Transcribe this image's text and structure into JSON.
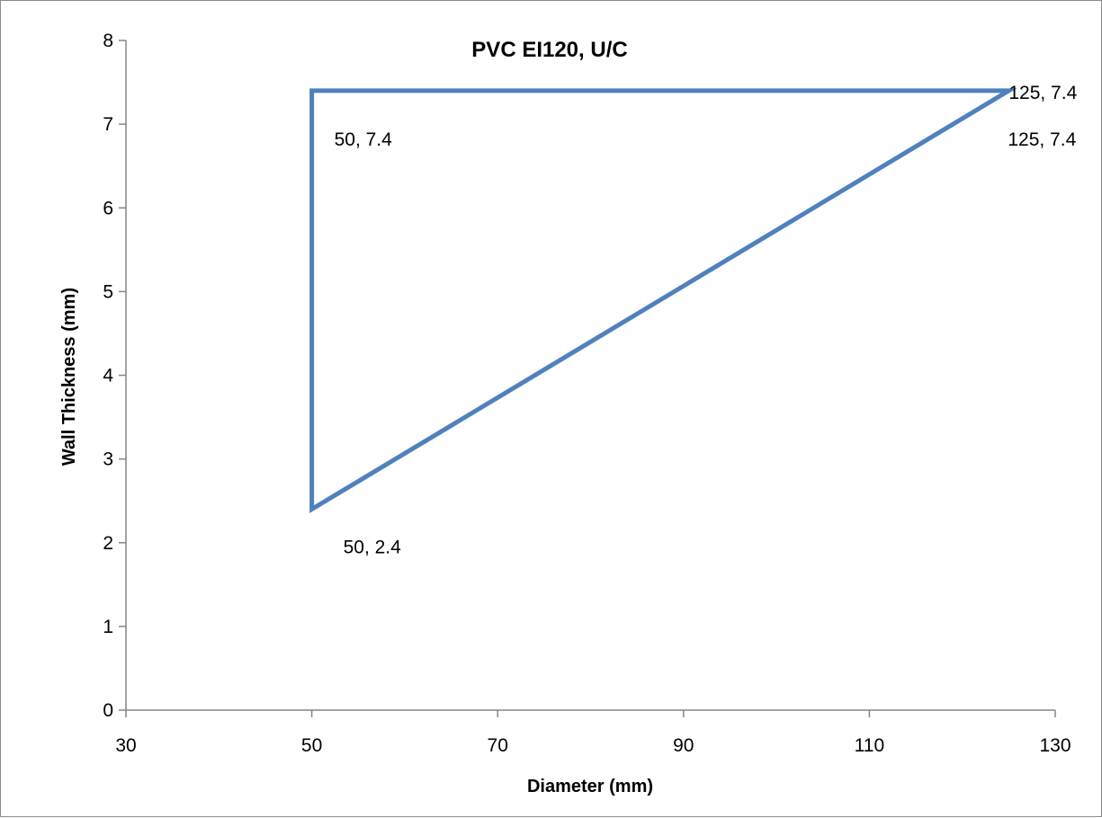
{
  "chart_data": {
    "type": "line",
    "title": "PVC EI120, U/C",
    "xlabel": "Diameter (mm)",
    "ylabel": "Wall Thickness (mm)",
    "xlim": [
      30,
      130
    ],
    "ylim": [
      0,
      8
    ],
    "x_ticks": [
      "30",
      "50",
      "70",
      "90",
      "110",
      "130"
    ],
    "y_ticks": [
      "0",
      "1",
      "2",
      "3",
      "4",
      "5",
      "6",
      "7",
      "8"
    ],
    "grid": false,
    "legend": "none",
    "series": [
      {
        "color": "#4f81bd",
        "points": [
          {
            "x": 50,
            "y": 7.4,
            "label": "50, 7.4"
          },
          {
            "x": 125,
            "y": 7.4,
            "label": "125, 7.4"
          },
          {
            "x": 50,
            "y": 2.4,
            "label": "50, 2.4"
          },
          {
            "x": 50,
            "y": 7.4
          },
          {
            "x": 125,
            "y": 7.4,
            "label": "125, 7.4"
          }
        ]
      }
    ]
  }
}
